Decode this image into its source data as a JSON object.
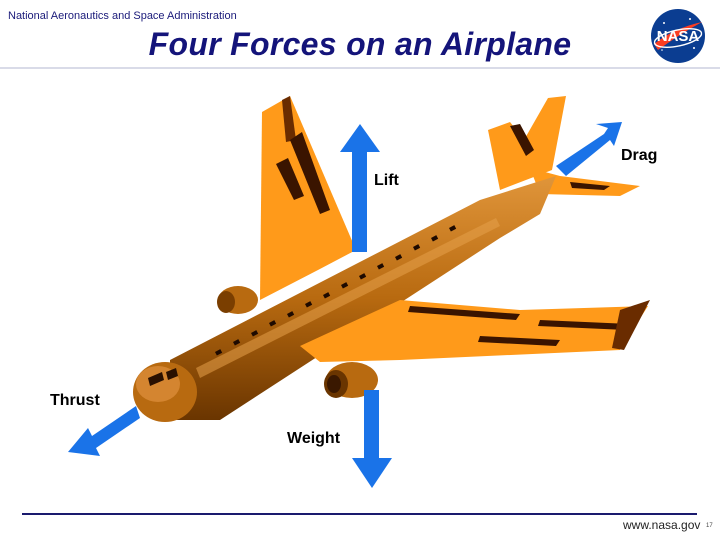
{
  "header": {
    "org": "National Aeronautics and Space Administration",
    "title": "Four  Forces  on an Airplane",
    "logo_text": "NASA"
  },
  "forces": {
    "lift": "Lift",
    "drag": "Drag",
    "thrust": "Thrust",
    "weight": "Weight"
  },
  "footer": {
    "site": "www.nasa.gov",
    "slide_number": "17"
  },
  "colors": {
    "arrow": "#1a73e8",
    "body": "#b86a10",
    "wing": "#ff9a1a",
    "title": "#14147a",
    "logo_blue": "#0b3d91",
    "logo_red": "#fc3d21"
  },
  "icons": {
    "logo": "nasa-meatball-logo",
    "airplane": "airplane-illustration"
  }
}
